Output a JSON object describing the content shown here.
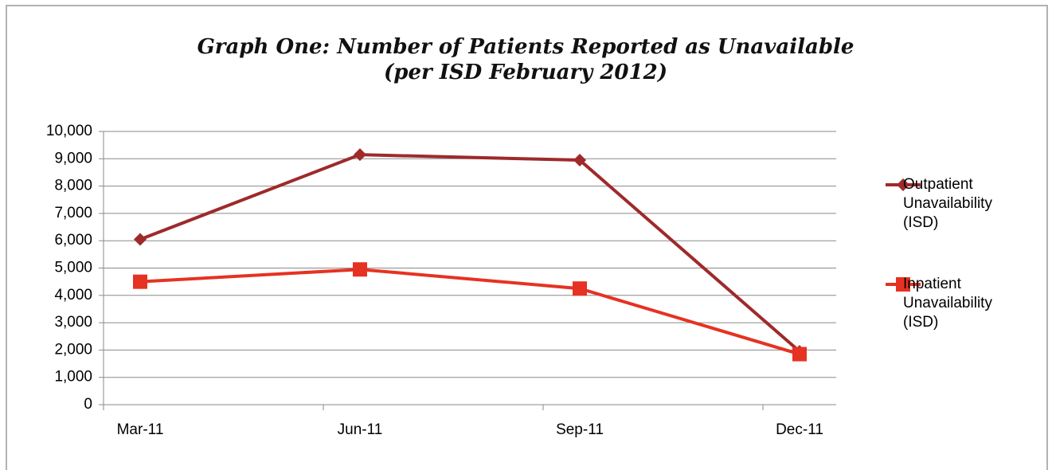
{
  "chart_data": {
    "type": "line",
    "title": [
      "Graph One: Number of Patients Reported as Unavailable",
      "(per ISD February 2012)"
    ],
    "categories": [
      "Mar-11",
      "Jun-11",
      "Sep-11",
      "Dec-11"
    ],
    "series": [
      {
        "name": "Outpatient Unavailability (ISD)",
        "color": "#9e2a2b",
        "marker": "diamond",
        "values": [
          6050,
          9150,
          8950,
          1950
        ]
      },
      {
        "name": "Inpatient Unavailability (ISD)",
        "color": "#e63222",
        "marker": "square",
        "values": [
          4500,
          4950,
          4250,
          1850
        ]
      }
    ],
    "ylim": [
      0,
      10000
    ],
    "yticks": [
      0,
      {
        "value": 1000,
        "label": "1,000"
      },
      {
        "value": 2000,
        "label": "2,000"
      },
      {
        "value": 3000,
        "label": "3,000"
      },
      {
        "value": 4000,
        "label": "4,000"
      },
      {
        "value": 5000,
        "label": "5,000"
      },
      {
        "value": 6000,
        "label": "6,000"
      },
      {
        "value": 7000,
        "label": "7,000"
      },
      {
        "value": 8000,
        "label": "8,000"
      },
      {
        "value": 9000,
        "label": "9,000"
      },
      {
        "value": 10000,
        "label": "10,000"
      }
    ],
    "grid": true,
    "legend": "right"
  }
}
